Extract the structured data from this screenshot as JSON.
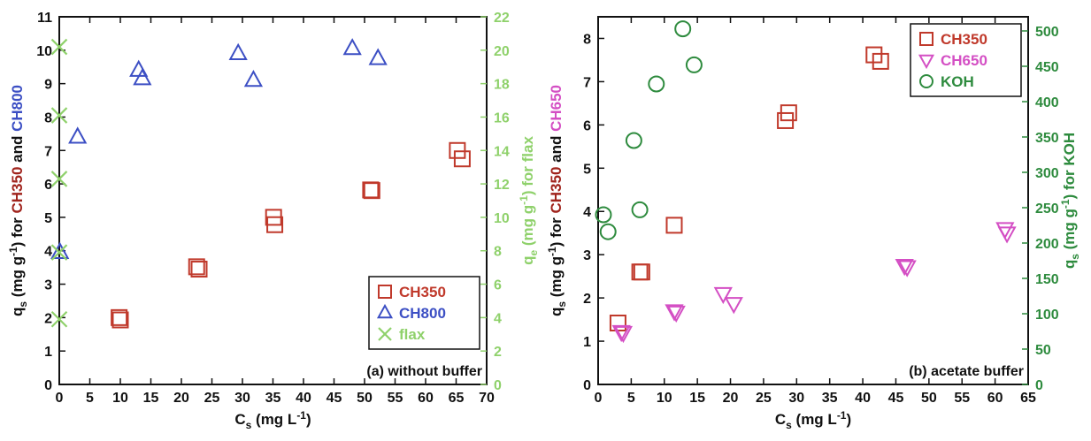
{
  "chart_data": [
    {
      "type": "scatter",
      "panel_label": "(a) without buffer",
      "xlabel": {
        "base": "C",
        "sub": "s",
        "unit": "(mg L",
        "sup": "-1",
        "close": ")"
      },
      "ylabel_left": [
        {
          "text": "q",
          "color": "#111111"
        },
        {
          "text": "s",
          "color": "#111111",
          "sub": true
        },
        {
          "text": " (mg g",
          "color": "#111111"
        },
        {
          "text": "-1",
          "color": "#111111",
          "sup": true
        },
        {
          "text": ") for ",
          "color": "#111111"
        },
        {
          "text": "CH350",
          "color": "#a0231c"
        },
        {
          "text": " and ",
          "color": "#111111"
        },
        {
          "text": "CH800",
          "color": "#3c4fc4"
        }
      ],
      "ylabel_right": [
        {
          "text": "q",
          "color": "#8fd16b"
        },
        {
          "text": "e",
          "color": "#8fd16b",
          "sub": true
        },
        {
          "text": " (mg g",
          "color": "#8fd16b"
        },
        {
          "text": "-1",
          "color": "#8fd16b",
          "sup": true
        },
        {
          "text": ") for flax",
          "color": "#8fd16b"
        }
      ],
      "xlim": [
        0,
        70
      ],
      "xticks": [
        0,
        5,
        10,
        15,
        20,
        25,
        30,
        35,
        40,
        45,
        50,
        55,
        60,
        65,
        70
      ],
      "ylim_left": [
        0,
        11
      ],
      "yticks_left": [
        0,
        1,
        2,
        3,
        4,
        5,
        6,
        7,
        8,
        9,
        10,
        11
      ],
      "ylim_right": [
        0,
        22
      ],
      "yticks_right": [
        0,
        2,
        4,
        6,
        8,
        10,
        12,
        14,
        16,
        18,
        20,
        22
      ],
      "legend_position": "bottom-right",
      "series": [
        {
          "name": "CH350",
          "marker": "square",
          "color": "#c0392b",
          "axis": "left",
          "x": [
            9.8,
            10.0,
            22.5,
            22.9,
            35.1,
            35.3,
            51.0,
            51.2,
            65.2,
            66.0
          ],
          "y": [
            2.0,
            1.93,
            3.52,
            3.45,
            5.0,
            4.78,
            5.82,
            5.8,
            7.0,
            6.75
          ]
        },
        {
          "name": "CH800",
          "marker": "triangle-up",
          "color": "#3c4fc4",
          "axis": "left",
          "x": [
            0.1,
            3.0,
            13.0,
            13.6,
            29.3,
            31.8,
            48.0,
            52.2
          ],
          "y": [
            3.95,
            7.4,
            9.4,
            9.15,
            9.9,
            9.1,
            10.05,
            9.75
          ]
        },
        {
          "name": "flax",
          "marker": "x",
          "color": "#8fd16b",
          "axis": "right",
          "x": [
            0,
            0,
            0,
            0,
            0
          ],
          "y": [
            20.2,
            16.1,
            12.3,
            7.9,
            3.9
          ]
        }
      ]
    },
    {
      "type": "scatter",
      "panel_label": "(b) acetate buffer",
      "xlabel": {
        "base": "C",
        "sub": "s",
        "unit": "(mg L",
        "sup": "-1",
        "close": ")"
      },
      "ylabel_left": [
        {
          "text": "q",
          "color": "#111111"
        },
        {
          "text": "s",
          "color": "#111111",
          "sub": true
        },
        {
          "text": " (mg g",
          "color": "#111111"
        },
        {
          "text": "-1",
          "color": "#111111",
          "sup": true
        },
        {
          "text": ") for ",
          "color": "#111111"
        },
        {
          "text": "CH350",
          "color": "#a0231c"
        },
        {
          "text": " and ",
          "color": "#111111"
        },
        {
          "text": "CH650",
          "color": "#d44fc4"
        }
      ],
      "ylabel_right": [
        {
          "text": "q",
          "color": "#2e8b3e"
        },
        {
          "text": "s",
          "color": "#2e8b3e",
          "sub": true
        },
        {
          "text": " (mg g",
          "color": "#2e8b3e"
        },
        {
          "text": "-1",
          "color": "#2e8b3e",
          "sup": true
        },
        {
          "text": ") for KOH",
          "color": "#2e8b3e"
        }
      ],
      "xlim": [
        0,
        65
      ],
      "xticks": [
        0,
        5,
        10,
        15,
        20,
        25,
        30,
        35,
        40,
        45,
        50,
        55,
        60,
        65
      ],
      "ylim_left": [
        0,
        8.5
      ],
      "yticks_left": [
        0,
        1,
        2,
        3,
        4,
        5,
        6,
        7,
        8
      ],
      "ylim_right": [
        0,
        520
      ],
      "yticks_right": [
        0,
        50,
        100,
        150,
        200,
        250,
        300,
        350,
        400,
        450,
        500
      ],
      "legend_position": "top-right",
      "series": [
        {
          "name": "CH350",
          "marker": "square",
          "color": "#c0392b",
          "axis": "left",
          "x": [
            3.0,
            6.3,
            6.6,
            11.5,
            28.3,
            28.8,
            41.7,
            42.7
          ],
          "y": [
            1.42,
            2.6,
            2.6,
            3.68,
            6.1,
            6.28,
            7.62,
            7.47
          ]
        },
        {
          "name": "CH650",
          "marker": "triangle-down",
          "color": "#d44fc4",
          "axis": "left",
          "x": [
            3.5,
            3.8,
            11.5,
            11.8,
            18.9,
            20.5,
            46.3,
            46.7,
            61.5,
            61.8
          ],
          "y": [
            1.22,
            1.2,
            1.7,
            1.67,
            2.1,
            1.87,
            2.75,
            2.72,
            3.6,
            3.5
          ]
        },
        {
          "name": "KOH",
          "marker": "circle",
          "color": "#2e8b3e",
          "axis": "right",
          "x": [
            0.8,
            1.5,
            5.4,
            6.3,
            8.8,
            12.8,
            14.5
          ],
          "y": [
            240,
            216,
            345,
            247,
            425,
            503,
            452
          ]
        }
      ]
    }
  ]
}
